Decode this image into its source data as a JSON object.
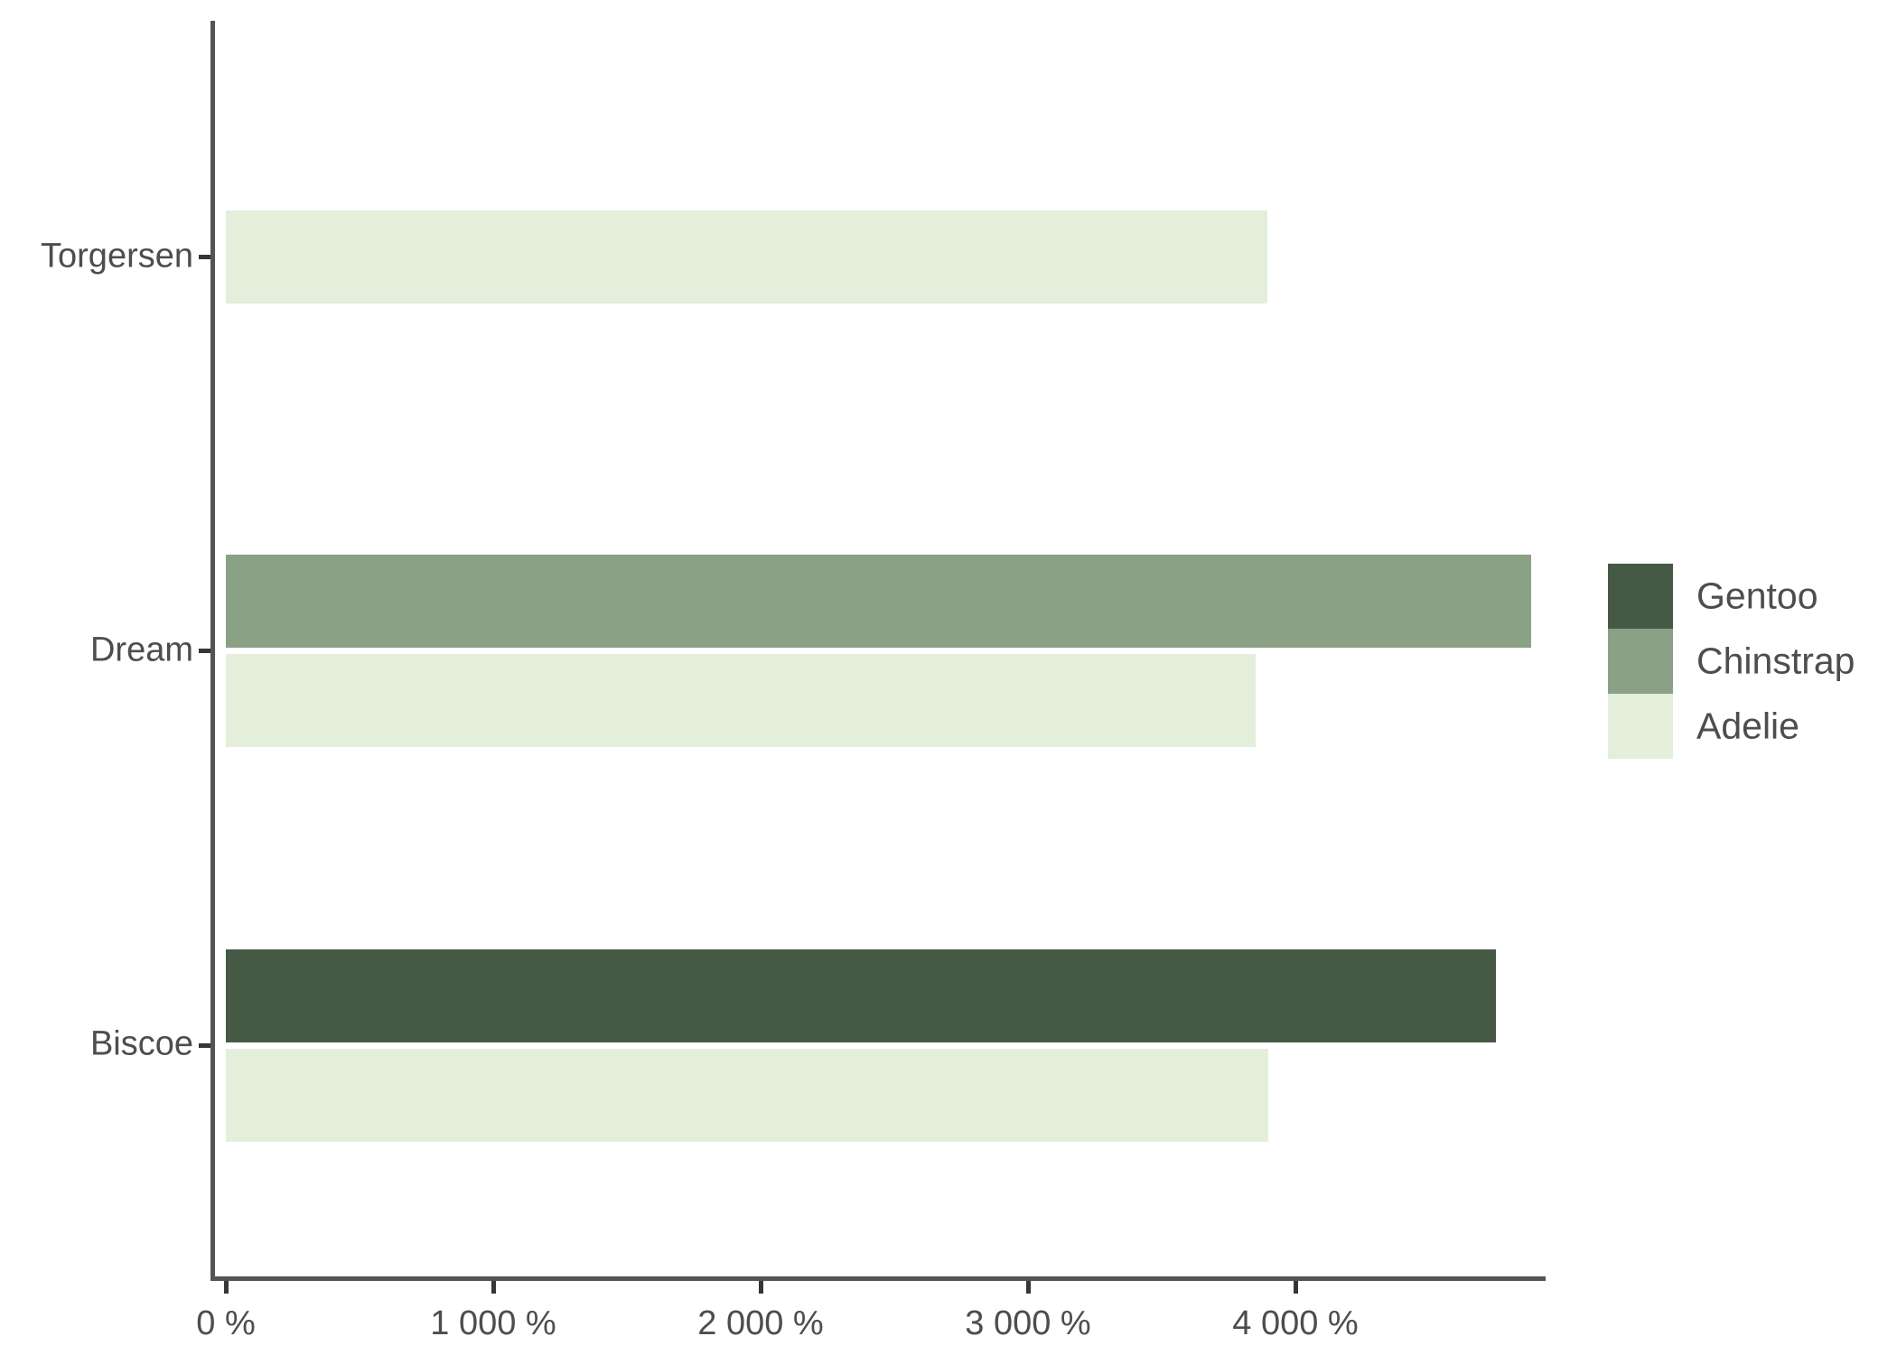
{
  "chart_data": {
    "type": "bar",
    "orientation": "horizontal",
    "title": "",
    "xlabel": "",
    "ylabel": "",
    "grid": false,
    "legend_position": "right",
    "x_unit": "%",
    "xlim": [
      0,
      4930
    ],
    "x_ticks": [
      {
        "value": 0,
        "label": "0 %"
      },
      {
        "value": 1000,
        "label": "1 000 %"
      },
      {
        "value": 2000,
        "label": "2 000 %"
      },
      {
        "value": 3000,
        "label": "3 000 %"
      },
      {
        "value": 4000,
        "label": "4 000 %"
      }
    ],
    "categories": [
      "Torgersen",
      "Dream",
      "Biscoe"
    ],
    "series": [
      {
        "name": "Gentoo",
        "color": "#455944"
      },
      {
        "name": "Chinstrap",
        "color": "#8BA186"
      },
      {
        "name": "Adelie",
        "color": "#E3EFDB"
      }
    ],
    "groups": [
      {
        "category": "Torgersen",
        "bars": [
          {
            "series": "Adelie",
            "value": 3895
          }
        ]
      },
      {
        "category": "Dream",
        "bars": [
          {
            "series": "Chinstrap",
            "value": 4883
          },
          {
            "series": "Adelie",
            "value": 3850
          }
        ]
      },
      {
        "category": "Biscoe",
        "bars": [
          {
            "series": "Gentoo",
            "value": 4750
          },
          {
            "series": "Adelie",
            "value": 3898
          }
        ]
      }
    ],
    "legend_items": [
      "Gentoo",
      "Chinstrap",
      "Adelie"
    ]
  }
}
